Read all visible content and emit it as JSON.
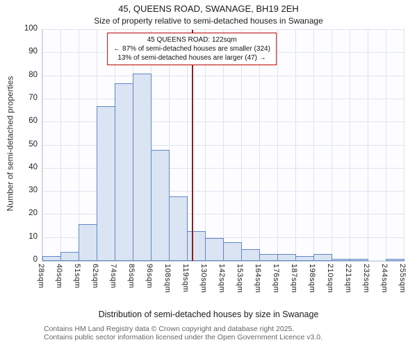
{
  "title": "45, QUEENS ROAD, SWANAGE, BH19 2EH",
  "subtitle": "Size of property relative to semi-detached houses in Swanage",
  "footer": {
    "line1": "Contains HM Land Registry data © Crown copyright and database right 2025.",
    "line2": "Contains public sector information licensed under the Open Government Licence v3.0."
  },
  "chart_data": {
    "type": "bar",
    "title": "45, QUEENS ROAD, SWANAGE, BH19 2EH",
    "subtitle": "Size of property relative to semi-detached houses in Swanage",
    "xlabel": "Distribution of semi-detached houses by size in Swanage",
    "ylabel": "Number of semi-detached properties",
    "ylim": [
      0,
      100
    ],
    "y_ticks": [
      0,
      10,
      20,
      30,
      40,
      50,
      60,
      70,
      80,
      90,
      100
    ],
    "grid": true,
    "bin_edges_sqm": [
      28,
      40,
      51,
      62,
      74,
      85,
      96,
      108,
      119,
      130,
      142,
      153,
      164,
      176,
      187,
      198,
      210,
      221,
      232,
      244,
      255
    ],
    "tick_labels": [
      "28sqm",
      "40sqm",
      "51sqm",
      "62sqm",
      "74sqm",
      "85sqm",
      "96sqm",
      "108sqm",
      "119sqm",
      "130sqm",
      "142sqm",
      "153sqm",
      "164sqm",
      "176sqm",
      "187sqm",
      "198sqm",
      "210sqm",
      "221sqm",
      "232sqm",
      "244sqm",
      "255sqm"
    ],
    "values": [
      2,
      4,
      16,
      67,
      77,
      81,
      48,
      28,
      13,
      10,
      8,
      5,
      3,
      3,
      2,
      3,
      1,
      1,
      0,
      1
    ],
    "bar_fill": "#dbe4f3",
    "bar_border": "#5f87c5",
    "marker": {
      "value_sqm": 122,
      "color": "#8b1f1f"
    },
    "annotation": {
      "line1": "45 QUEENS ROAD: 122sqm",
      "line2": "← 87% of semi-detached houses are smaller (324)",
      "line3": "13% of semi-detached houses are larger (47) →"
    }
  }
}
